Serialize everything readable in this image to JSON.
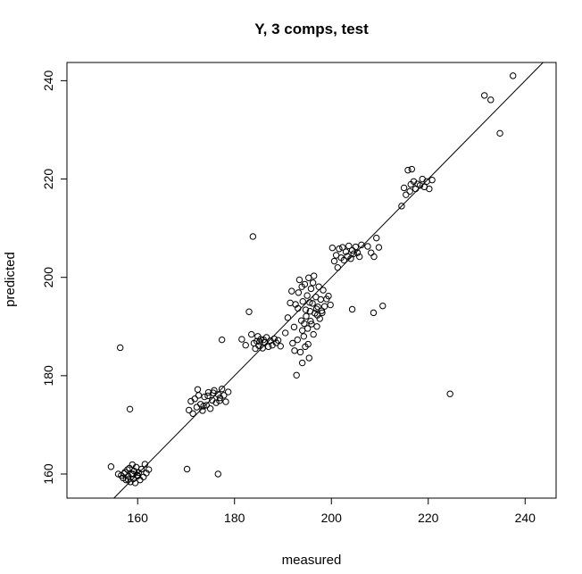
{
  "chart_data": {
    "type": "scatter",
    "title": "Y, 3 comps, test",
    "xlabel": "measured",
    "ylabel": "predicted",
    "xlim": [
      145.4,
      246.4
    ],
    "ylim": [
      155.1,
      243.7
    ],
    "x_ticks": [
      160,
      180,
      200,
      220,
      240
    ],
    "y_ticks": [
      160,
      180,
      200,
      220,
      240
    ],
    "reference_line": {
      "slope": 1,
      "intercept": 0
    },
    "grid": false,
    "legend": "none",
    "points": [
      [
        154.5,
        161.5
      ],
      [
        156.0,
        160.0
      ],
      [
        156.6,
        159.7
      ],
      [
        157.0,
        159.2
      ],
      [
        157.4,
        160.4
      ],
      [
        157.6,
        158.8
      ],
      [
        157.9,
        160.9
      ],
      [
        158.1,
        159.5
      ],
      [
        158.3,
        161.2
      ],
      [
        158.5,
        158.4
      ],
      [
        158.7,
        160.0
      ],
      [
        158.9,
        161.9
      ],
      [
        159.1,
        159.0
      ],
      [
        159.3,
        160.6
      ],
      [
        159.5,
        158.2
      ],
      [
        159.7,
        161.4
      ],
      [
        159.9,
        159.8
      ],
      [
        160.2,
        160.3
      ],
      [
        160.5,
        158.8
      ],
      [
        160.8,
        161.0
      ],
      [
        161.2,
        159.4
      ],
      [
        161.5,
        162.0
      ],
      [
        161.8,
        160.2
      ],
      [
        162.3,
        160.9
      ],
      [
        158.0,
        158.9
      ],
      [
        157.2,
        160.1
      ],
      [
        159.0,
        160.0
      ],
      [
        160.0,
        159.6
      ],
      [
        156.4,
        185.7
      ],
      [
        158.4,
        173.2
      ],
      [
        170.2,
        161.0
      ],
      [
        176.6,
        160.0
      ],
      [
        170.6,
        173.0
      ],
      [
        171.0,
        174.8
      ],
      [
        171.4,
        172.3
      ],
      [
        171.8,
        175.3
      ],
      [
        172.2,
        173.6
      ],
      [
        172.6,
        176.0
      ],
      [
        173.0,
        174.2
      ],
      [
        173.4,
        172.9
      ],
      [
        173.8,
        175.7
      ],
      [
        174.2,
        174.0
      ],
      [
        174.6,
        176.6
      ],
      [
        175.0,
        173.3
      ],
      [
        175.4,
        175.0
      ],
      [
        175.8,
        177.0
      ],
      [
        176.2,
        174.5
      ],
      [
        176.6,
        176.2
      ],
      [
        177.0,
        175.5
      ],
      [
        177.4,
        177.3
      ],
      [
        177.8,
        176.0
      ],
      [
        178.2,
        174.7
      ],
      [
        178.7,
        176.7
      ],
      [
        172.4,
        177.2
      ],
      [
        174.5,
        175.9
      ],
      [
        175.6,
        176.5
      ],
      [
        176.9,
        174.9
      ],
      [
        173.6,
        173.8
      ],
      [
        177.4,
        187.3
      ],
      [
        181.5,
        187.4
      ],
      [
        182.3,
        186.2
      ],
      [
        183.0,
        193.0
      ],
      [
        183.5,
        188.4
      ],
      [
        184.0,
        186.6
      ],
      [
        184.3,
        185.5
      ],
      [
        184.6,
        187.0
      ],
      [
        185.0,
        186.1
      ],
      [
        185.4,
        187.4
      ],
      [
        185.8,
        185.6
      ],
      [
        186.2,
        186.8
      ],
      [
        186.6,
        187.8
      ],
      [
        187.0,
        185.9
      ],
      [
        187.4,
        187.1
      ],
      [
        187.8,
        186.2
      ],
      [
        188.2,
        187.5
      ],
      [
        188.6,
        186.7
      ],
      [
        189.0,
        187.2
      ],
      [
        189.5,
        186.0
      ],
      [
        183.8,
        208.3
      ],
      [
        185.2,
        186.9
      ],
      [
        186.0,
        187.3
      ],
      [
        184.8,
        188.0
      ],
      [
        190.5,
        188.7
      ],
      [
        191.0,
        191.8
      ],
      [
        191.5,
        194.8
      ],
      [
        191.8,
        197.2
      ],
      [
        192.0,
        186.6
      ],
      [
        192.3,
        189.9
      ],
      [
        192.6,
        194.5
      ],
      [
        192.8,
        180.1
      ],
      [
        193.0,
        187.3
      ],
      [
        193.2,
        196.9
      ],
      [
        193.4,
        199.5
      ],
      [
        193.6,
        184.8
      ],
      [
        193.8,
        191.2
      ],
      [
        194.0,
        182.6
      ],
      [
        194.1,
        195.1
      ],
      [
        194.3,
        188.0
      ],
      [
        194.5,
        198.6
      ],
      [
        194.6,
        185.9
      ],
      [
        194.8,
        192.1
      ],
      [
        195.0,
        196.3
      ],
      [
        195.1,
        189.6
      ],
      [
        195.3,
        199.9
      ],
      [
        195.4,
        183.6
      ],
      [
        195.6,
        193.1
      ],
      [
        195.8,
        197.7
      ],
      [
        195.9,
        190.5
      ],
      [
        196.1,
        194.7
      ],
      [
        196.3,
        188.4
      ],
      [
        196.4,
        200.3
      ],
      [
        196.6,
        192.7
      ],
      [
        196.8,
        196.0
      ],
      [
        197.0,
        190.0
      ],
      [
        197.2,
        194.0
      ],
      [
        197.4,
        198.1
      ],
      [
        197.6,
        191.6
      ],
      [
        197.8,
        195.5
      ],
      [
        198.0,
        193.2
      ],
      [
        198.3,
        197.4
      ],
      [
        198.6,
        194.1
      ],
      [
        199.0,
        195.6
      ],
      [
        199.4,
        196.2
      ],
      [
        199.8,
        194.4
      ],
      [
        193.1,
        193.7
      ],
      [
        194.4,
        190.6
      ],
      [
        195.7,
        191.1
      ],
      [
        196.9,
        193.6
      ],
      [
        197.1,
        192.3
      ],
      [
        195.2,
        186.4
      ],
      [
        194.0,
        189.2
      ],
      [
        192.4,
        185.1
      ],
      [
        196.2,
        198.9
      ],
      [
        193.9,
        198.1
      ],
      [
        198.1,
        192.8
      ],
      [
        194.7,
        193.4
      ],
      [
        195.5,
        194.9
      ],
      [
        200.2,
        206.0
      ],
      [
        200.6,
        203.3
      ],
      [
        201.0,
        204.5
      ],
      [
        201.3,
        202.0
      ],
      [
        201.6,
        205.8
      ],
      [
        202.0,
        204.0
      ],
      [
        202.3,
        206.1
      ],
      [
        202.6,
        203.5
      ],
      [
        203.0,
        205.2
      ],
      [
        203.3,
        204.3
      ],
      [
        203.6,
        206.4
      ],
      [
        204.0,
        203.8
      ],
      [
        204.3,
        205.5
      ],
      [
        204.6,
        204.8
      ],
      [
        205.0,
        206.2
      ],
      [
        205.4,
        205.0
      ],
      [
        205.8,
        204.2
      ],
      [
        206.2,
        206.6
      ],
      [
        207.5,
        206.3
      ],
      [
        208.2,
        205.0
      ],
      [
        208.8,
        204.2
      ],
      [
        209.3,
        208.0
      ],
      [
        209.8,
        206.1
      ],
      [
        204.3,
        193.5
      ],
      [
        208.7,
        192.8
      ],
      [
        210.6,
        194.2
      ],
      [
        214.5,
        214.5
      ],
      [
        215.0,
        218.2
      ],
      [
        215.4,
        216.8
      ],
      [
        215.8,
        221.8
      ],
      [
        216.2,
        217.5
      ],
      [
        216.6,
        222.0
      ],
      [
        217.0,
        219.5
      ],
      [
        217.4,
        218.0
      ],
      [
        217.8,
        219.0
      ],
      [
        218.3,
        218.7
      ],
      [
        218.8,
        220.0
      ],
      [
        219.2,
        218.4
      ],
      [
        219.7,
        219.5
      ],
      [
        220.2,
        218.0
      ],
      [
        220.8,
        219.8
      ],
      [
        216.4,
        218.9
      ],
      [
        224.5,
        176.3
      ],
      [
        231.6,
        237.0
      ],
      [
        232.9,
        236.1
      ],
      [
        234.8,
        229.3
      ],
      [
        237.5,
        241.0
      ]
    ]
  }
}
